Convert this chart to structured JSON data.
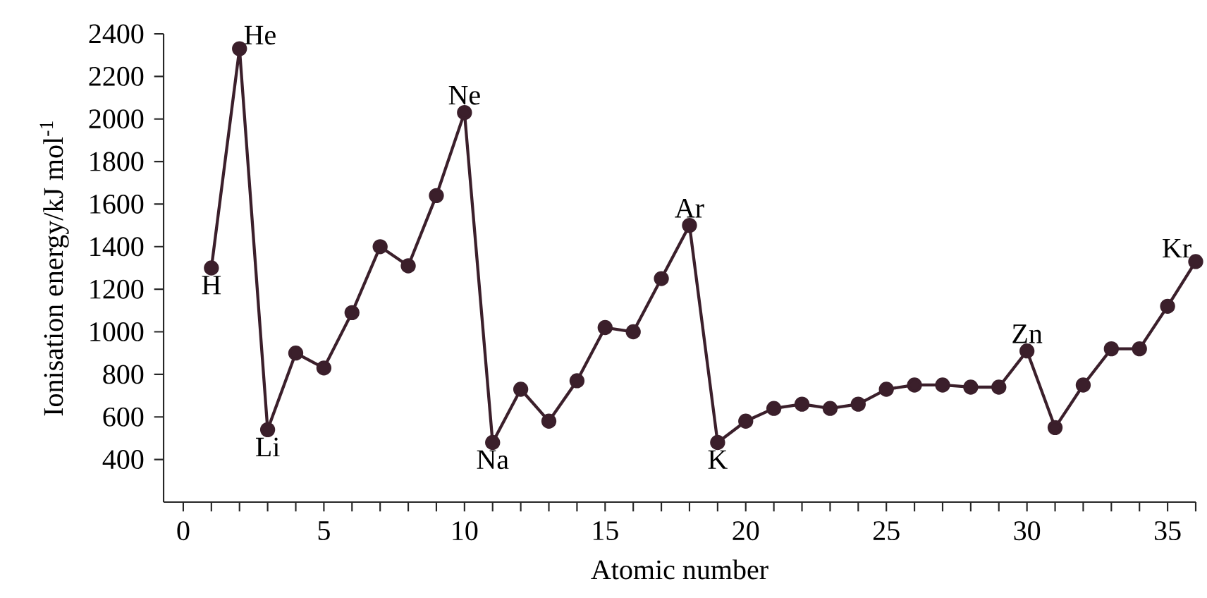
{
  "chart_data": {
    "type": "line",
    "xlabel": "Atomic number",
    "ylabel": "Ionisation energy/kJ mol$^{-1}$",
    "x": [
      1,
      2,
      3,
      4,
      5,
      6,
      7,
      8,
      9,
      10,
      11,
      12,
      13,
      14,
      15,
      16,
      17,
      18,
      19,
      20,
      21,
      22,
      23,
      24,
      25,
      26,
      27,
      28,
      29,
      30,
      31,
      32,
      33,
      34,
      35,
      36
    ],
    "series": [
      {
        "color": "#3b1f2b",
        "values": [
          1300,
          2330,
          540,
          900,
          830,
          1090,
          1400,
          1310,
          1640,
          2030,
          480,
          730,
          580,
          770,
          1020,
          1000,
          1250,
          1500,
          480,
          580,
          640,
          660,
          640,
          660,
          730,
          750,
          750,
          740,
          740,
          910,
          550,
          750,
          920,
          920,
          1120,
          1330
        ]
      }
    ],
    "xlim": [
      -0.7,
      36
    ],
    "ylim": [
      200,
      2400
    ],
    "xticks": [
      0,
      {
        "value": 1,
        "label": null
      },
      {
        "value": 2,
        "label": null
      },
      {
        "value": 3,
        "label": null
      },
      {
        "value": 4,
        "label": null
      },
      5,
      {
        "value": 6,
        "label": null
      },
      {
        "value": 7,
        "label": null
      },
      {
        "value": 8,
        "label": null
      },
      {
        "value": 9,
        "label": null
      },
      10,
      {
        "value": 11,
        "label": null
      },
      {
        "value": 12,
        "label": null
      },
      {
        "value": 13,
        "label": null
      },
      {
        "value": 14,
        "label": null
      },
      15,
      {
        "value": 16,
        "label": null
      },
      {
        "value": 17,
        "label": null
      },
      {
        "value": 18,
        "label": null
      },
      {
        "value": 19,
        "label": null
      },
      20,
      {
        "value": 21,
        "label": null
      },
      {
        "value": 22,
        "label": null
      },
      {
        "value": 23,
        "label": null
      },
      {
        "value": 24,
        "label": null
      },
      25,
      {
        "value": 26,
        "label": null
      },
      {
        "value": 27,
        "label": null
      },
      {
        "value": 28,
        "label": null
      },
      {
        "value": 29,
        "label": null
      },
      30,
      {
        "value": 31,
        "label": null
      },
      {
        "value": 32,
        "label": null
      },
      {
        "value": 33,
        "label": null
      },
      {
        "value": 34,
        "label": null
      },
      35,
      {
        "value": 36,
        "label": null
      }
    ],
    "yticks": [
      400,
      600,
      800,
      1000,
      1200,
      1400,
      1600,
      1800,
      2000,
      2200,
      2400
    ],
    "marker": "circle",
    "line_style": "solid",
    "grid": false,
    "annotations": [
      {
        "text": "H",
        "x": 1,
        "y": 1300
      },
      {
        "text": "He",
        "x": 2,
        "y": 2330
      },
      {
        "text": "Li",
        "x": 3,
        "y": 540
      },
      {
        "text": "Ne",
        "x": 10,
        "y": 2030
      },
      {
        "text": "Na",
        "x": 11,
        "y": 480
      },
      {
        "text": "Ar",
        "x": 18,
        "y": 1500
      },
      {
        "text": "K",
        "x": 19,
        "y": 480
      },
      {
        "text": "Zn",
        "x": 30,
        "y": 910
      },
      {
        "text": "Kr",
        "x": 36,
        "y": 1330
      }
    ]
  }
}
